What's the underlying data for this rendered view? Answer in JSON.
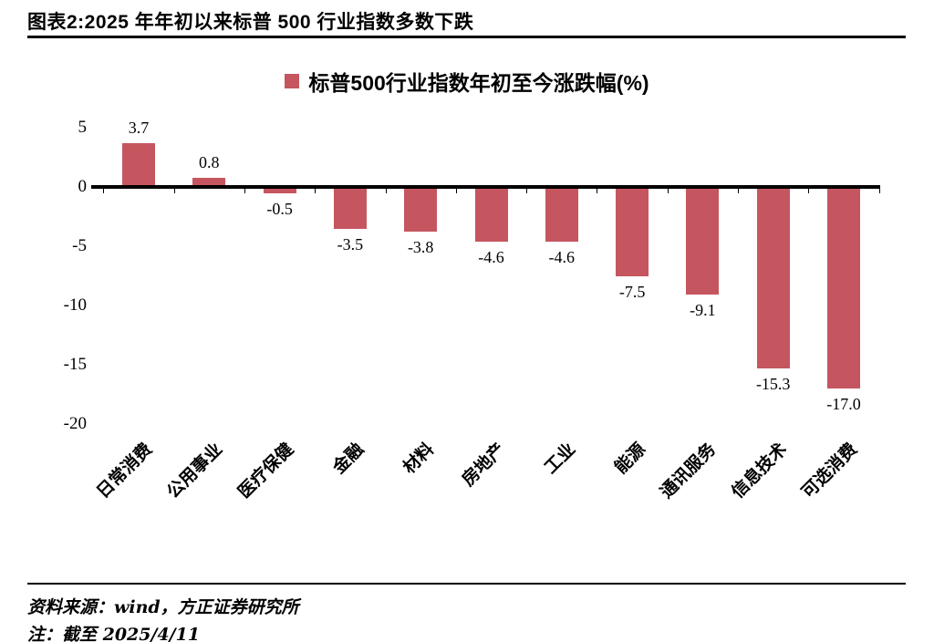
{
  "header": {
    "title": "图表2:2025 年年初以来标普 500 行业指数多数下跌"
  },
  "chart_data": {
    "type": "bar",
    "legend": "标普500行业指数年初至今涨跌幅(%)",
    "categories": [
      "日常消费",
      "公用事业",
      "医疗保健",
      "金融",
      "材料",
      "房地产",
      "工业",
      "能源",
      "通讯服务",
      "信息技术",
      "可选消费"
    ],
    "values": [
      3.7,
      0.8,
      -0.5,
      -3.5,
      -3.8,
      -4.6,
      -4.6,
      -7.5,
      -9.1,
      -15.3,
      -17.0
    ],
    "value_labels": [
      "3.7",
      "0.8",
      "-0.5",
      "-3.5",
      "-3.8",
      "-4.6",
      "-4.6",
      "-7.5",
      "-9.1",
      "-15.3",
      "-17.0"
    ],
    "y_ticks": [
      5,
      0,
      -5,
      -10,
      -15,
      -20
    ],
    "ylim": [
      -20,
      5
    ],
    "grid": false,
    "legend_position": "top-center",
    "bar_color": "#C5565F",
    "axis_color": "#000000"
  },
  "footer": {
    "source": "资料来源：wind，方正证券研究所",
    "note": "注：截至 2025/4/11"
  }
}
